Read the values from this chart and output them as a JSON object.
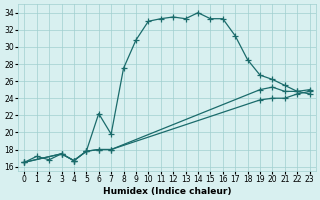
{
  "xlabel": "Humidex (Indice chaleur)",
  "xlim": [
    -0.5,
    23.5
  ],
  "ylim": [
    15.5,
    35
  ],
  "xticks": [
    0,
    1,
    2,
    3,
    4,
    5,
    6,
    7,
    8,
    9,
    10,
    11,
    12,
    13,
    14,
    15,
    16,
    17,
    18,
    19,
    20,
    21,
    22,
    23
  ],
  "yticks": [
    16,
    18,
    20,
    22,
    24,
    26,
    28,
    30,
    32,
    34
  ],
  "bg_color": "#d8f0f0",
  "grid_color": "#a0d0d0",
  "line_color": "#1a6b6b",
  "line1_x": [
    0,
    1,
    2,
    3,
    4,
    5,
    6,
    7,
    8,
    9,
    10,
    11,
    12,
    13,
    14,
    15,
    16,
    17,
    18,
    19,
    20,
    21,
    22,
    23
  ],
  "line1_y": [
    16.5,
    17.2,
    16.8,
    17.5,
    16.7,
    17.8,
    22.2,
    19.8,
    27.5,
    30.8,
    33.0,
    33.3,
    33.5,
    33.3,
    34.0,
    33.3,
    33.3,
    31.3,
    28.5,
    26.7,
    26.2,
    25.5,
    24.8,
    24.5
  ],
  "line2_x": [
    0,
    3,
    4,
    5,
    6,
    7,
    19,
    20,
    21,
    22,
    23
  ],
  "line2_y": [
    16.5,
    17.5,
    16.7,
    17.8,
    18.0,
    18.0,
    25.0,
    25.3,
    24.8,
    24.8,
    25.0
  ],
  "line3_x": [
    0,
    3,
    4,
    5,
    6,
    7,
    19,
    20,
    21,
    22,
    23
  ],
  "line3_y": [
    16.5,
    17.5,
    16.7,
    17.8,
    18.0,
    18.0,
    23.8,
    24.0,
    24.0,
    24.5,
    24.8
  ]
}
